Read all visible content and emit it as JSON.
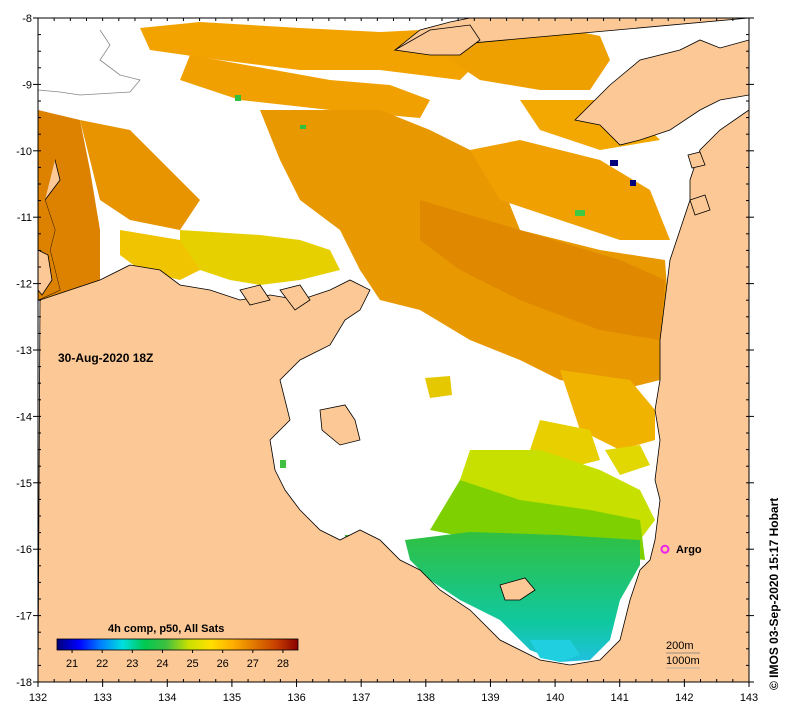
{
  "map": {
    "timestamp": "30-Aug-2020 18Z",
    "credit": "© IMOS 03-Sep-2020 15:17 Hobart",
    "x_ticks": [
      "132",
      "133",
      "134",
      "135",
      "136",
      "137",
      "138",
      "139",
      "140",
      "141",
      "142",
      "143"
    ],
    "y_ticks": [
      "-8",
      "-9",
      "-10",
      "-11",
      "-12",
      "-13",
      "-14",
      "-15",
      "-16",
      "-17",
      "-18"
    ],
    "lon_range": [
      132,
      143
    ],
    "lat_range": [
      -18,
      -8
    ],
    "argo": {
      "label": "Argo",
      "lon": 141.7,
      "lat": -16.0,
      "color": "#ee22ee"
    },
    "depth_contours": [
      "200m",
      "1000m"
    ],
    "land_color": "#fcc896",
    "no_data_color": "#ffffff"
  },
  "colorbar": {
    "title": "4h comp, p50, All Sats",
    "ticks": [
      "21",
      "22",
      "23",
      "24",
      "25",
      "26",
      "27",
      "28"
    ],
    "range": [
      20.5,
      28.5
    ],
    "colors": [
      "#00007a",
      "#0000ff",
      "#0080ff",
      "#00e0e0",
      "#00c850",
      "#40c040",
      "#c8e000",
      "#ffe000",
      "#ffb000",
      "#e07800",
      "#c84000",
      "#8a0000"
    ]
  }
}
